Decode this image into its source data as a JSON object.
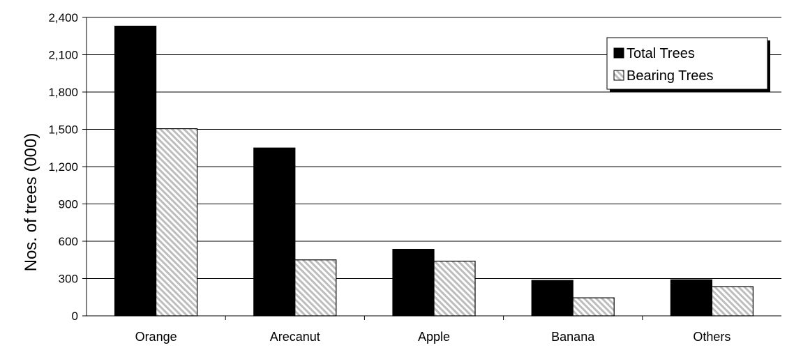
{
  "chart_data": {
    "type": "bar",
    "title": "",
    "xlabel": "",
    "ylabel": "Nos. of trees (000)",
    "ylim": [
      0,
      2400
    ],
    "yticks": [
      0,
      300,
      600,
      900,
      1200,
      1500,
      1800,
      2100,
      2400
    ],
    "ytick_labels": [
      "0",
      "300",
      "600",
      "900",
      "1,200",
      "1,500",
      "1,800",
      "2,100",
      "2,400"
    ],
    "categories": [
      "Orange",
      "Arecanut",
      "Apple",
      "Banana",
      "Others"
    ],
    "series": [
      {
        "name": "Total Trees",
        "values": [
          2330,
          1350,
          535,
          285,
          290
        ],
        "color": "#000000",
        "pattern": "solid"
      },
      {
        "name": "Bearing Trees",
        "values": [
          1505,
          450,
          440,
          145,
          235
        ],
        "color": "#cfcfcf",
        "pattern": "diagonal-hatch"
      }
    ],
    "grid": true,
    "legend_position": "top-right"
  }
}
